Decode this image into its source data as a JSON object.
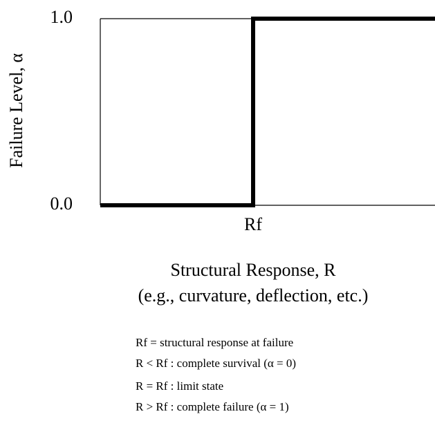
{
  "y_axis": {
    "label": "Failure Level, α",
    "ticks": [
      "1.0",
      "0.0"
    ]
  },
  "x_axis": {
    "tick": "Rf",
    "label_lines": [
      "Structural Response, R",
      "(e.g., curvature, deflection, etc.)"
    ]
  },
  "notes": [
    "Rf = structural response at failure",
    "R < Rf : complete survival (α = 0)",
    "R = Rf : limit state",
    "R > Rf : complete failure (α = 1)"
  ]
}
